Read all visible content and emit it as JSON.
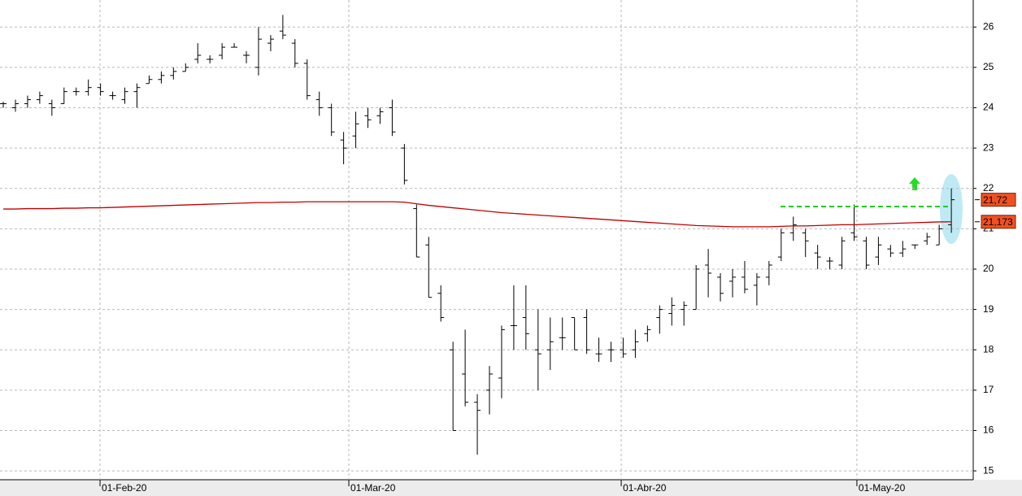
{
  "chart_data": {
    "type": "ohlc",
    "categories": [
      null,
      null,
      null,
      null,
      null,
      null,
      null,
      null,
      null,
      null,
      null,
      null,
      null,
      null,
      null,
      null,
      null,
      null,
      null,
      null,
      null,
      null,
      null,
      null,
      null,
      null,
      null,
      null,
      null,
      null,
      null,
      null,
      null,
      null,
      null,
      null,
      null,
      null,
      null,
      null,
      null,
      null,
      null,
      null,
      null,
      null,
      null,
      null,
      null,
      null,
      null,
      null,
      null,
      null,
      null,
      null,
      null,
      null,
      null,
      null,
      null,
      null,
      null,
      null,
      null,
      null,
      null,
      null,
      null,
      null,
      null,
      null,
      null,
      null,
      null,
      null,
      null,
      null,
      null
    ],
    "xlim": [
      -0.27,
      79.8
    ],
    "xticks": [
      {
        "value": 7.96,
        "label": "01-Feb-20"
      },
      {
        "value": 28.43,
        "label": "01-Mar-20"
      },
      {
        "value": 50.84,
        "label": "01-Abr-20"
      },
      {
        "value": 70.23,
        "label": "01-May-20"
      }
    ],
    "ylim": [
      14.78,
      26.67
    ],
    "yticks": [
      15,
      16,
      17,
      18,
      19,
      20,
      21,
      22,
      23,
      24,
      25,
      26
    ],
    "grid": true,
    "color": "#000000",
    "open": [
      24.1,
      24.0,
      24.1,
      24.2,
      24.1,
      24.1,
      24.4,
      24.4,
      24.5,
      24.3,
      24.2,
      24.4,
      24.6,
      24.7,
      24.8,
      24.9,
      25.2,
      25.2,
      25.3,
      25.5,
      25.3,
      25.0,
      25.6,
      25.9,
      25.6,
      25.1,
      24.2,
      24.0,
      23.2,
      23.3,
      23.8,
      23.8,
      24.0,
      23.0,
      21.5,
      20.6,
      19.4,
      18.0,
      17.4,
      16.7,
      17.0,
      17.3,
      18.6,
      18.8,
      18.0,
      18.0,
      18.3,
      18.8,
      18.8,
      17.9,
      18.0,
      18.0,
      18.0,
      18.4,
      18.8,
      18.9,
      19.0,
      19.0,
      20.1,
      19.8,
      19.7,
      19.8,
      19.6,
      19.8,
      20.3,
      20.9,
      20.9,
      20.4,
      20.2,
      20.1,
      20.9,
      20.7,
      20.3,
      20.5,
      20.4,
      20.6,
      20.7,
      20.6,
      21.1
    ],
    "high": [
      24.15,
      24.2,
      24.3,
      24.4,
      24.2,
      24.5,
      24.5,
      24.7,
      24.6,
      24.4,
      24.5,
      24.6,
      24.8,
      24.9,
      25.0,
      25.1,
      25.6,
      25.3,
      25.6,
      25.6,
      25.4,
      26.0,
      25.8,
      26.3,
      25.7,
      25.2,
      24.4,
      24.1,
      23.4,
      23.9,
      24.0,
      24.0,
      24.2,
      23.1,
      21.6,
      20.8,
      19.6,
      18.2,
      18.5,
      16.9,
      17.6,
      18.6,
      19.6,
      19.6,
      19.0,
      18.8,
      18.8,
      18.8,
      19.0,
      18.3,
      18.2,
      18.3,
      18.5,
      18.6,
      19.1,
      19.3,
      19.2,
      20.1,
      20.5,
      19.9,
      20.0,
      20.2,
      19.9,
      20.2,
      21.0,
      21.3,
      21.0,
      20.6,
      20.3,
      20.8,
      21.6,
      20.8,
      20.8,
      20.6,
      20.7,
      20.6,
      20.9,
      21.1,
      22.0
    ],
    "low": [
      24.0,
      23.9,
      24.0,
      24.1,
      23.8,
      24.1,
      24.3,
      24.3,
      24.3,
      24.2,
      24.1,
      24.0,
      24.6,
      24.6,
      24.7,
      24.9,
      25.1,
      25.1,
      25.2,
      25.5,
      25.1,
      24.8,
      25.4,
      25.7,
      25.0,
      24.2,
      23.8,
      23.3,
      22.6,
      23.0,
      23.5,
      23.6,
      23.3,
      22.1,
      20.3,
      19.3,
      18.7,
      16.0,
      16.6,
      15.4,
      16.4,
      16.8,
      18.0,
      18.0,
      17.0,
      17.5,
      18.0,
      18.0,
      17.9,
      17.7,
      17.7,
      17.8,
      17.8,
      18.2,
      18.4,
      18.6,
      18.6,
      19.0,
      19.3,
      19.2,
      19.3,
      19.4,
      19.1,
      19.6,
      20.2,
      20.7,
      20.3,
      20.0,
      20.0,
      20.0,
      20.7,
      20.0,
      20.1,
      20.3,
      20.3,
      20.5,
      20.6,
      20.6,
      20.9
    ],
    "close": [
      24.1,
      24.1,
      24.2,
      24.3,
      24.0,
      24.4,
      24.4,
      24.5,
      24.4,
      24.3,
      24.4,
      24.5,
      24.7,
      24.8,
      24.9,
      25.0,
      25.3,
      25.2,
      25.5,
      25.5,
      25.3,
      25.7,
      25.7,
      25.8,
      25.1,
      24.3,
      24.0,
      23.4,
      23.0,
      23.6,
      23.7,
      23.9,
      23.4,
      22.2,
      20.3,
      19.3,
      18.8,
      16.0,
      16.7,
      16.5,
      17.4,
      18.5,
      18.6,
      18.4,
      17.9,
      18.2,
      18.3,
      18.0,
      18.0,
      17.9,
      18.0,
      17.9,
      18.2,
      18.5,
      19.0,
      19.1,
      19.1,
      20.0,
      19.9,
      19.4,
      19.8,
      19.5,
      19.8,
      20.1,
      20.9,
      21.1,
      20.7,
      20.3,
      20.2,
      20.7,
      20.8,
      20.1,
      20.6,
      20.4,
      20.5,
      20.6,
      20.8,
      21.0,
      21.72
    ],
    "series": [
      {
        "color": "#c00000",
        "values": [
          21.49,
          21.49,
          21.5,
          21.5,
          21.5,
          21.51,
          21.51,
          21.52,
          21.52,
          21.53,
          21.54,
          21.55,
          21.56,
          21.57,
          21.58,
          21.59,
          21.6,
          21.61,
          21.62,
          21.63,
          21.64,
          21.65,
          21.65,
          21.66,
          21.66,
          21.67,
          21.67,
          21.67,
          21.67,
          21.67,
          21.67,
          21.67,
          21.67,
          21.66,
          21.62,
          21.58,
          21.55,
          21.52,
          21.49,
          21.46,
          21.43,
          21.4,
          21.38,
          21.36,
          21.34,
          21.32,
          21.3,
          21.28,
          21.26,
          21.24,
          21.22,
          21.2,
          21.18,
          21.16,
          21.14,
          21.12,
          21.1,
          21.08,
          21.07,
          21.06,
          21.05,
          21.05,
          21.05,
          21.05,
          21.06,
          21.07,
          21.07,
          21.08,
          21.09,
          21.1,
          21.1,
          21.11,
          21.12,
          21.13,
          21.14,
          21.15,
          21.16,
          21.17,
          21.173
        ]
      }
    ],
    "hline": {
      "value": 21.55,
      "color": "#22cc22"
    },
    "markers": [
      {
        "value": 21.72,
        "label": "21,72",
        "color": "#f05020"
      },
      {
        "value": 21.173,
        "label": "21,173",
        "color": "#f05020"
      }
    ]
  }
}
